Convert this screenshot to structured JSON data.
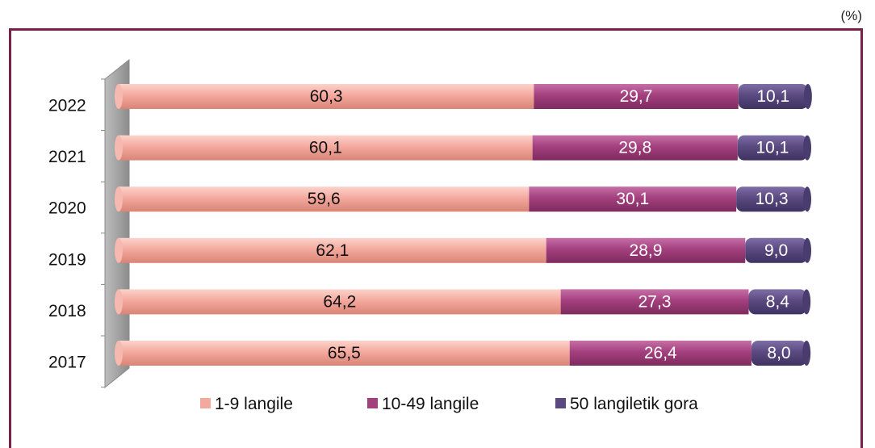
{
  "unit": "(%)",
  "colors": {
    "small": "#f4a99e",
    "medium": "#a3407e",
    "large": "#5a4a80",
    "frame": "#7a1f4c",
    "wall": "#9a9a9a"
  },
  "chart_data": {
    "type": "bar",
    "orientation": "horizontal",
    "stacked": true,
    "categories": [
      "2022",
      "2021",
      "2020",
      "2019",
      "2018",
      "2017"
    ],
    "series": [
      {
        "name": "1-9 langile",
        "values": [
          60.3,
          60.1,
          59.6,
          62.1,
          64.2,
          65.5
        ],
        "labels": [
          "60,3",
          "60,1",
          "59,6",
          "62,1",
          "64,2",
          "65,5"
        ]
      },
      {
        "name": "10-49 langile",
        "values": [
          29.7,
          29.8,
          30.1,
          28.9,
          27.3,
          26.4
        ],
        "labels": [
          "29,7",
          "29,8",
          "30,1",
          "28,9",
          "27,3",
          "26,4"
        ]
      },
      {
        "name": "50 langiletik gora",
        "values": [
          10.1,
          10.1,
          10.3,
          9.0,
          8.4,
          8.0
        ],
        "labels": [
          "10,1",
          "10,1",
          "10,3",
          "9,0",
          "8,4",
          "8,0"
        ]
      }
    ],
    "xlim": [
      0,
      100
    ],
    "legend_position": "bottom",
    "grid": false
  }
}
